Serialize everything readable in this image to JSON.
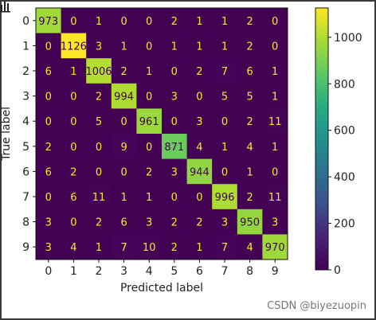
{
  "watermark": "CSDN @biyezuopin",
  "chart_data": {
    "type": "heatmap",
    "title": "",
    "xlabel": "Predicted label",
    "ylabel": "True label",
    "x_categories": [
      "0",
      "1",
      "2",
      "3",
      "4",
      "5",
      "6",
      "7",
      "8",
      "9"
    ],
    "y_categories": [
      "0",
      "1",
      "2",
      "3",
      "4",
      "5",
      "6",
      "7",
      "8",
      "9"
    ],
    "matrix": [
      [
        973,
        0,
        1,
        0,
        0,
        2,
        1,
        1,
        2,
        0
      ],
      [
        0,
        1126,
        3,
        1,
        0,
        1,
        1,
        1,
        2,
        0
      ],
      [
        6,
        1,
        1006,
        2,
        1,
        0,
        2,
        7,
        6,
        1
      ],
      [
        0,
        0,
        2,
        994,
        0,
        3,
        0,
        5,
        5,
        1
      ],
      [
        0,
        0,
        5,
        0,
        961,
        0,
        3,
        0,
        2,
        11
      ],
      [
        2,
        0,
        0,
        9,
        0,
        871,
        4,
        1,
        4,
        1
      ],
      [
        6,
        2,
        0,
        0,
        2,
        3,
        944,
        0,
        1,
        0
      ],
      [
        0,
        6,
        11,
        1,
        1,
        0,
        0,
        996,
        2,
        11
      ],
      [
        3,
        0,
        2,
        6,
        3,
        2,
        2,
        3,
        950,
        3
      ],
      [
        3,
        4,
        1,
        7,
        10,
        2,
        1,
        7,
        4,
        970
      ]
    ],
    "colormap": "viridis",
    "colorbar": {
      "range": [
        0,
        1126
      ],
      "ticks": [
        0,
        200,
        400,
        600,
        800,
        1000
      ]
    },
    "text_colors": {
      "low": "#fde725",
      "high": "#440154"
    }
  }
}
